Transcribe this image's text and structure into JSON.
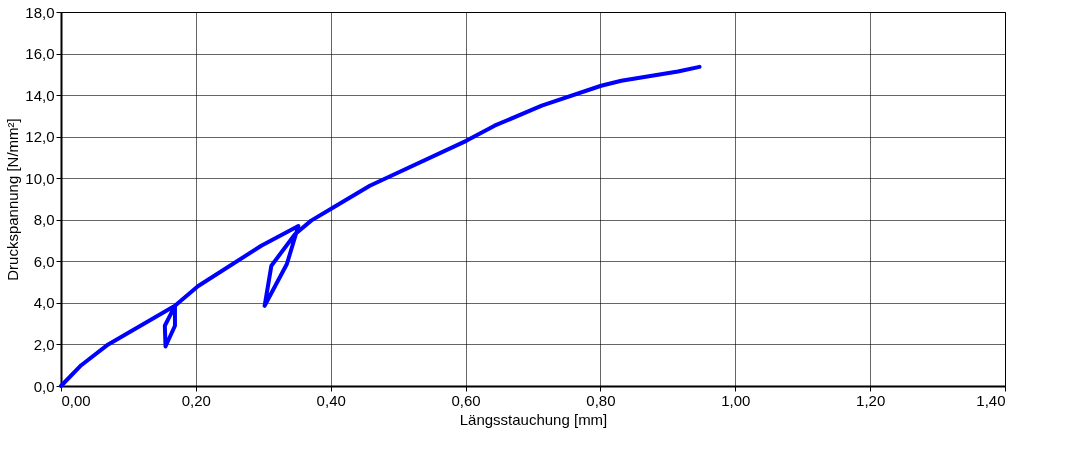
{
  "chart_data": {
    "type": "line",
    "xlabel": "Längsstauchung [mm]",
    "ylabel": "Druckspannung [N/mm²]",
    "x": [
      0,
      0.03,
      0.07,
      0.169,
      0.169,
      0.155,
      0.154,
      0.169,
      0.203,
      0.297,
      0.352,
      0.335,
      0.302,
      0.312,
      0.347,
      0.371,
      0.4,
      0.458,
      0.601,
      0.643,
      0.713,
      0.801,
      0.831,
      0.915,
      0.947
    ],
    "series": [
      {
        "color": "#0000ff",
        "values": [
          0,
          1.0,
          2.0,
          3.86,
          2.9,
          1.9,
          2.9,
          3.86,
          4.8,
          6.75,
          7.7,
          5.87,
          3.86,
          5.79,
          7.3,
          7.96,
          8.52,
          9.64,
          11.8,
          12.53,
          13.49,
          14.45,
          14.69,
          15.14,
          15.36
        ]
      }
    ],
    "xlim": [
      0,
      1.4
    ],
    "xticks": [
      {
        "value": 0,
        "label": "0,00"
      },
      {
        "value": 0.2,
        "label": "0,20"
      },
      {
        "value": 0.4,
        "label": "0,40"
      },
      {
        "value": 0.6,
        "label": "0,60"
      },
      {
        "value": 0.8,
        "label": "0,80"
      },
      {
        "value": 1.0,
        "label": "1,00"
      },
      {
        "value": 1.2,
        "label": "1,20"
      },
      {
        "value": 1.4,
        "label": "1,40"
      }
    ],
    "ylim": [
      0,
      18
    ],
    "yticks": [
      {
        "value": 0,
        "label": "0,0"
      },
      {
        "value": 2,
        "label": "2,0"
      },
      {
        "value": 4,
        "label": "4,0"
      },
      {
        "value": 6,
        "label": "6,0"
      },
      {
        "value": 8,
        "label": "8,0"
      },
      {
        "value": 10,
        "label": "10,0"
      },
      {
        "value": 12,
        "label": "12,0"
      },
      {
        "value": 14,
        "label": "14,0"
      },
      {
        "value": 16,
        "label": "16,0"
      },
      {
        "value": 18,
        "label": "18,0"
      }
    ],
    "grid": true,
    "legend": false,
    "marker": "none",
    "line_style": "solid"
  }
}
